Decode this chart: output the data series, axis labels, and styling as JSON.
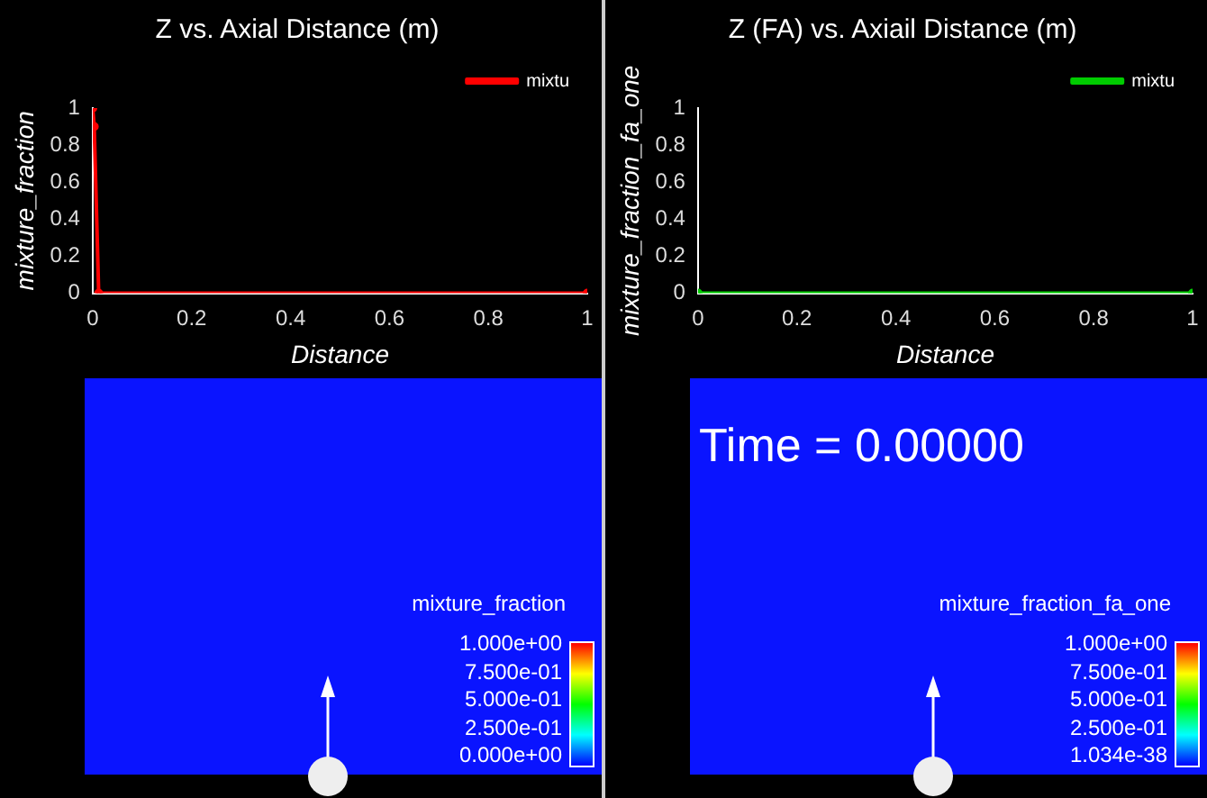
{
  "chart_data": [
    {
      "type": "line",
      "title": "Z vs. Axial Distance (m)",
      "xlabel": "Distance",
      "ylabel": "mixture_fraction",
      "x": [
        0,
        0.003,
        0.012,
        1
      ],
      "series": [
        {
          "name": "mixtu",
          "color": "#ff0000",
          "values": [
            1,
            0.9,
            0,
            0
          ]
        }
      ],
      "xlim": [
        0,
        1
      ],
      "ylim": [
        0,
        1
      ],
      "xticks": [
        0,
        0.2,
        0.4,
        0.6,
        0.8,
        1
      ],
      "yticks": [
        0,
        0.2,
        0.4,
        0.6,
        0.8,
        1
      ],
      "grid": false,
      "legend": "top right",
      "marker": "circle",
      "line_style": "solid"
    },
    {
      "type": "line",
      "title": "Z (FA) vs. Axiail Distance (m)",
      "xlabel": "Distance",
      "ylabel": "mixture_fraction_fa_one",
      "x": [
        0,
        1
      ],
      "series": [
        {
          "name": "mixtu",
          "color": "#00cc00",
          "values": [
            0,
            0
          ]
        }
      ],
      "xlim": [
        0,
        1
      ],
      "ylim": [
        0,
        1
      ],
      "xticks": [
        0,
        0.2,
        0.4,
        0.6,
        0.8,
        1
      ],
      "yticks": [
        0,
        0.2,
        0.4,
        0.6,
        0.8,
        1
      ],
      "grid": false,
      "legend": "top right",
      "marker": "circle",
      "line_style": "solid"
    },
    {
      "type": "other",
      "clabel": "mixture_fraction",
      "annotations": [
        "1.000e+00",
        "7.500e-01",
        "5.000e-01",
        "2.500e-01",
        "0.000e+00"
      ]
    },
    {
      "type": "other",
      "title": "Time = 0.00000",
      "clabel": "mixture_fraction_fa_one",
      "annotations": [
        "1.000e+00",
        "7.500e-01",
        "5.000e-01",
        "2.500e-01",
        "1.034e-38"
      ]
    }
  ]
}
